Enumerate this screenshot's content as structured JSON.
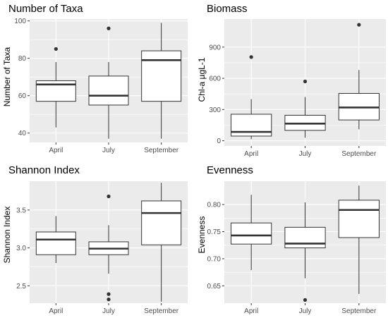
{
  "chart_data": [
    {
      "type": "boxplot",
      "title": "Number of Taxa",
      "xlabel": "",
      "ylabel": "Number of Taxa",
      "categories": [
        "April",
        "July",
        "September"
      ],
      "ylim": [
        35,
        101
      ],
      "yticks": [
        40,
        60,
        80,
        100
      ],
      "ytick_labels": [
        "40",
        "60",
        "80",
        "100"
      ],
      "boxes": [
        {
          "category": "April",
          "whisker_low": 43,
          "q1": 57,
          "median": 66,
          "q3": 68,
          "whisker_high": 78,
          "outliers": [
            85
          ]
        },
        {
          "category": "July",
          "whisker_low": 37,
          "q1": 55,
          "median": 60,
          "q3": 70.5,
          "whisker_high": 78,
          "outliers": [
            96
          ]
        },
        {
          "category": "September",
          "whisker_low": 37,
          "q1": 57,
          "median": 79,
          "q3": 84,
          "whisker_high": 99,
          "outliers": []
        }
      ],
      "grid": true,
      "background": "#ebebeb"
    },
    {
      "type": "boxplot",
      "title": "Biomass",
      "xlabel": "",
      "ylabel": "Chl-a µgL-1",
      "categories": [
        "April",
        "July",
        "September"
      ],
      "ylim": [
        -50,
        1170
      ],
      "yticks": [
        0,
        300,
        600,
        900
      ],
      "ytick_labels": [
        "0",
        "300",
        "600",
        "900"
      ],
      "boxes": [
        {
          "category": "April",
          "whisker_low": 15,
          "q1": 45,
          "median": 85,
          "q3": 255,
          "whisker_high": 400,
          "outliers": [
            805
          ]
        },
        {
          "category": "July",
          "whisker_low": 30,
          "q1": 100,
          "median": 165,
          "q3": 245,
          "whisker_high": 420,
          "outliers": [
            570
          ]
        },
        {
          "category": "September",
          "whisker_low": 110,
          "q1": 200,
          "median": 320,
          "q3": 455,
          "whisker_high": 680,
          "outliers": [
            1115
          ]
        }
      ],
      "grid": true,
      "background": "#ebebeb"
    },
    {
      "type": "boxplot",
      "title": "Shannon Index",
      "xlabel": "",
      "ylabel": "Shannon Index",
      "categories": [
        "April",
        "July",
        "September"
      ],
      "ylim": [
        2.27,
        3.88
      ],
      "yticks": [
        2.5,
        3.0,
        3.5
      ],
      "ytick_labels": [
        "2.5",
        "3.0",
        "3.5"
      ],
      "boxes": [
        {
          "category": "April",
          "whisker_low": 2.8,
          "q1": 2.91,
          "median": 3.11,
          "q3": 3.21,
          "whisker_high": 3.42,
          "outliers": []
        },
        {
          "category": "July",
          "whisker_low": 2.66,
          "q1": 2.91,
          "median": 2.99,
          "q3": 3.08,
          "whisker_high": 3.3,
          "outliers": [
            3.68,
            2.39,
            2.32
          ]
        },
        {
          "category": "September",
          "whisker_low": 2.29,
          "q1": 3.04,
          "median": 3.46,
          "q3": 3.62,
          "whisker_high": 3.86,
          "outliers": []
        }
      ],
      "grid": true,
      "background": "#ebebeb"
    },
    {
      "type": "boxplot",
      "title": "Evenness",
      "xlabel": "",
      "ylabel": "Evenness",
      "categories": [
        "April",
        "July",
        "September"
      ],
      "ylim": [
        0.618,
        0.843
      ],
      "yticks": [
        0.65,
        0.7,
        0.75,
        0.8
      ],
      "ytick_labels": [
        "0.65",
        "0.70",
        "0.75",
        "0.80"
      ],
      "boxes": [
        {
          "category": "April",
          "whisker_low": 0.679,
          "q1": 0.727,
          "median": 0.743,
          "q3": 0.766,
          "whisker_high": 0.818,
          "outliers": []
        },
        {
          "category": "July",
          "whisker_low": 0.664,
          "q1": 0.72,
          "median": 0.728,
          "q3": 0.758,
          "whisker_high": 0.804,
          "outliers": [
            0.624
          ]
        },
        {
          "category": "September",
          "whisker_low": 0.635,
          "q1": 0.739,
          "median": 0.79,
          "q3": 0.808,
          "whisker_high": 0.835,
          "outliers": []
        }
      ],
      "grid": true,
      "background": "#ebebeb"
    }
  ]
}
